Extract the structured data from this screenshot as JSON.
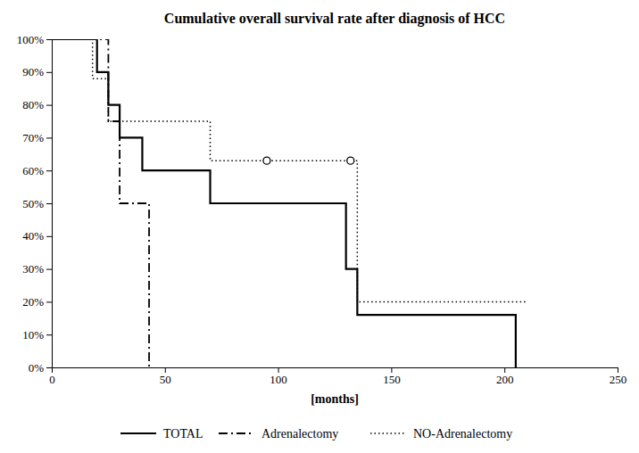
{
  "chart_data": {
    "type": "step",
    "title": "Cumulative overall survival rate after diagnosis of HCC",
    "xlabel": "[months]",
    "xlim": [
      0,
      250
    ],
    "ylim": [
      0.0,
      1.0
    ],
    "xticks": [
      0,
      50,
      100,
      150,
      200,
      250
    ],
    "yticks": [
      {
        "value": 0.0,
        "label": "0%"
      },
      {
        "value": 0.1,
        "label": "10%"
      },
      {
        "value": 0.2,
        "label": "20%"
      },
      {
        "value": 0.3,
        "label": "30%"
      },
      {
        "value": 0.4,
        "label": "40%"
      },
      {
        "value": 0.5,
        "label": "50%"
      },
      {
        "value": 0.6,
        "label": "60%"
      },
      {
        "value": 0.7,
        "label": "70%"
      },
      {
        "value": 0.8,
        "label": "80%"
      },
      {
        "value": 0.9,
        "label": "90%"
      },
      {
        "value": 1.0,
        "label": "100%"
      }
    ],
    "grid": false,
    "legend": "bottom",
    "series": [
      {
        "name": "TOTAL",
        "color": "#000000",
        "line_style": "solid",
        "x": [
          0,
          20,
          25,
          30,
          40,
          70,
          130,
          135,
          200,
          205
        ],
        "values": [
          1.0,
          0.9,
          0.8,
          0.7,
          0.6,
          0.5,
          0.3,
          0.16,
          0.16,
          0.0
        ]
      },
      {
        "name": "Adrenalectomy",
        "color": "#000000",
        "line_style": "dashdot",
        "x": [
          0,
          25,
          30,
          40,
          43
        ],
        "values": [
          1.0,
          0.75,
          0.5,
          0.5,
          0.0
        ]
      },
      {
        "name": "NO-Adrenalectomy",
        "color": "#000000",
        "line_style": "dotted",
        "x": [
          0,
          18,
          25,
          70,
          130,
          135,
          210
        ],
        "values": [
          1.0,
          0.88,
          0.75,
          0.63,
          0.63,
          0.2,
          0.2
        ]
      }
    ],
    "censored": {
      "marker": "circle",
      "x": [
        95,
        132
      ],
      "values": [
        0.63,
        0.63
      ]
    }
  }
}
